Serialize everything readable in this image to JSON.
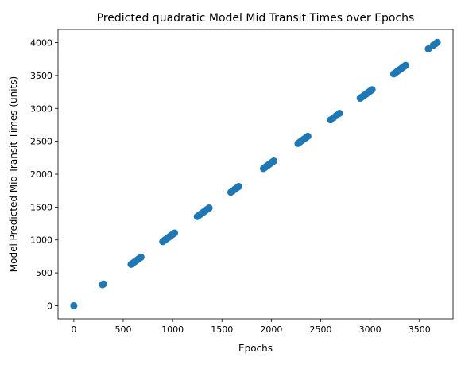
{
  "chart_data": {
    "type": "scatter",
    "title": "Predicted quadratic Model Mid Transit Times over Epochs",
    "xlabel": "Epochs",
    "ylabel": "Model Predicted Mid-Transit Times (units)",
    "xlim": [
      -160,
      3840
    ],
    "ylim": [
      -200,
      4200
    ],
    "x_ticks": [
      0,
      500,
      1000,
      1500,
      2000,
      2500,
      3000,
      3500
    ],
    "y_ticks": [
      0,
      500,
      1000,
      1500,
      2000,
      2500,
      3000,
      3500,
      4000
    ],
    "grid": false,
    "legend": "none",
    "marker_color": "#1f77b4",
    "series": [
      {
        "x": [
          0,
          290,
          300,
          580,
          600,
          620,
          640,
          660,
          680,
          900,
          915,
          930,
          945,
          960,
          975,
          990,
          1005,
          1020,
          1250,
          1265,
          1280,
          1295,
          1310,
          1325,
          1340,
          1355,
          1370,
          1590,
          1610,
          1630,
          1650,
          1670,
          1920,
          1935,
          1950,
          1965,
          1980,
          1995,
          2010,
          2025,
          2270,
          2290,
          2310,
          2330,
          2350,
          2370,
          2600,
          2630,
          2660,
          2690,
          2900,
          2915,
          2930,
          2945,
          2960,
          2975,
          2990,
          3005,
          3020,
          3240,
          3255,
          3270,
          3285,
          3300,
          3315,
          3330,
          3345,
          3360,
          3590,
          3640,
          3665,
          3680
        ],
        "y": [
          0,
          320,
          330,
          630,
          650,
          672,
          694,
          716,
          738,
          975,
          992,
          1008,
          1024,
          1040,
          1057,
          1073,
          1090,
          1106,
          1355,
          1372,
          1388,
          1404,
          1421,
          1437,
          1454,
          1470,
          1487,
          1725,
          1747,
          1769,
          1791,
          1813,
          2085,
          2101,
          2118,
          2134,
          2151,
          2167,
          2183,
          2200,
          2467,
          2489,
          2510,
          2532,
          2554,
          2576,
          2826,
          2859,
          2892,
          2925,
          3154,
          3170,
          3186,
          3203,
          3219,
          3236,
          3252,
          3268,
          3285,
          3524,
          3540,
          3557,
          3573,
          3589,
          3606,
          3622,
          3639,
          3655,
          3905,
          3959,
          3986,
          4003
        ]
      }
    ]
  }
}
